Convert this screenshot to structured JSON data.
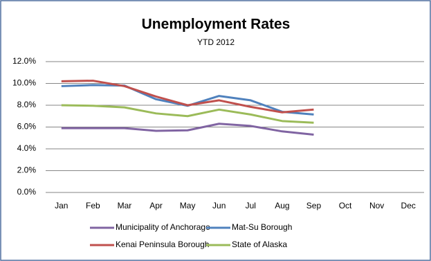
{
  "chart_data": {
    "type": "line",
    "title": "Unemployment Rates",
    "subtitle": "YTD 2012",
    "categories": [
      "Jan",
      "Feb",
      "Mar",
      "Apr",
      "May",
      "Jun",
      "Jul",
      "Aug",
      "Sep",
      "Oct",
      "Nov",
      "Dec"
    ],
    "series": [
      {
        "name": "Municipality of Anchorage",
        "color": "#8064A2",
        "values": [
          5.9,
          5.9,
          5.9,
          5.65,
          5.7,
          6.3,
          6.1,
          5.6,
          5.3,
          null,
          null,
          null
        ]
      },
      {
        "name": "Mat-Su Borough",
        "color": "#4F81BD",
        "values": [
          9.75,
          9.85,
          9.8,
          8.55,
          7.95,
          8.85,
          8.45,
          7.4,
          7.15,
          null,
          null,
          null
        ]
      },
      {
        "name": "Kenai Peninsula Borough",
        "color": "#C0504D",
        "values": [
          10.2,
          10.25,
          9.75,
          8.8,
          8.0,
          8.45,
          7.85,
          7.35,
          7.6,
          null,
          null,
          null
        ]
      },
      {
        "name": "State of Alaska",
        "color": "#9BBB59",
        "values": [
          8.0,
          7.95,
          7.8,
          7.25,
          7.0,
          7.6,
          7.15,
          6.55,
          6.4,
          null,
          null,
          null
        ]
      }
    ],
    "ylim": [
      0,
      12
    ],
    "yticks": [
      {
        "value": 0,
        "label": "0.0%"
      },
      {
        "value": 2,
        "label": "2.0%"
      },
      {
        "value": 4,
        "label": "4.0%"
      },
      {
        "value": 6,
        "label": "6.0%"
      },
      {
        "value": 8,
        "label": "8.0%"
      },
      {
        "value": 10,
        "label": "10.0%"
      },
      {
        "value": 12,
        "label": "12.0%"
      }
    ],
    "grid": true,
    "legend": "bottom"
  }
}
